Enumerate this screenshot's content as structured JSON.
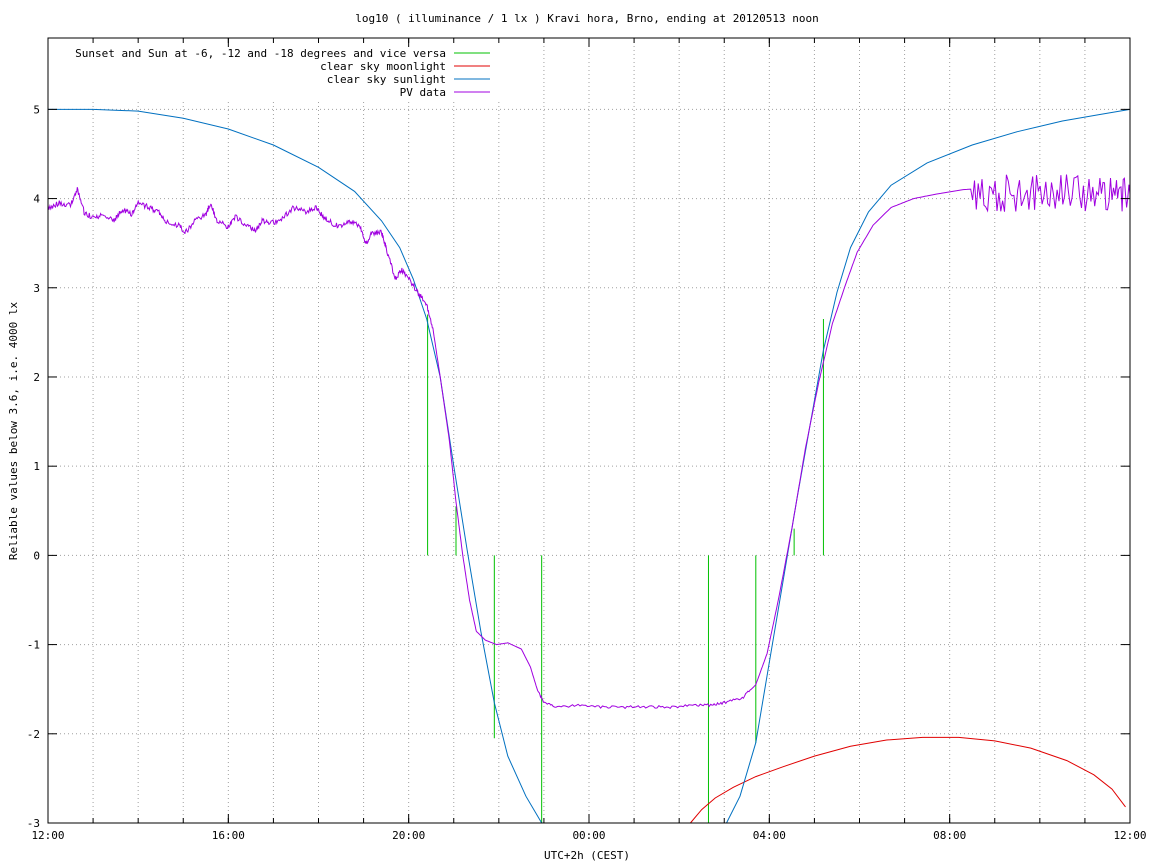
{
  "chart_data": {
    "type": "line",
    "title": "log10 ( illuminance / 1 lx ) Kravi hora, Brno, ending at 20120513 noon",
    "xlabel": "UTC+2h (CEST)",
    "ylabel": "Reliable values below 3.6, i.e. 4000 lx",
    "xlim": [
      0,
      24
    ],
    "ylim": [
      -3,
      5.8
    ],
    "x_ticks": [
      {
        "v": 0,
        "label": "12:00"
      },
      {
        "v": 4,
        "label": "16:00"
      },
      {
        "v": 8,
        "label": "20:00"
      },
      {
        "v": 12,
        "label": "00:00"
      },
      {
        "v": 16,
        "label": "04:00"
      },
      {
        "v": 20,
        "label": "08:00"
      },
      {
        "v": 24,
        "label": "12:00"
      }
    ],
    "y_ticks": [
      {
        "v": -3,
        "label": "-3"
      },
      {
        "v": -2,
        "label": "-2"
      },
      {
        "v": -1,
        "label": "-1"
      },
      {
        "v": 0,
        "label": "0"
      },
      {
        "v": 1,
        "label": "1"
      },
      {
        "v": 2,
        "label": "2"
      },
      {
        "v": 3,
        "label": "3"
      },
      {
        "v": 4,
        "label": "4"
      },
      {
        "v": 5,
        "label": "5"
      }
    ],
    "grid": true,
    "legend_position": "top-left",
    "series": [
      {
        "name": "Sunset and Sun at -6, -12 and -18 degrees and vice versa",
        "color": "#00c000",
        "kind": "vlines",
        "lines": [
          {
            "x": 8.42,
            "y0": 0,
            "y1": 2.7
          },
          {
            "x": 9.05,
            "y0": 0,
            "y1": 0.55
          },
          {
            "x": 9.9,
            "y0": -2.05,
            "y1": 0
          },
          {
            "x": 10.95,
            "y0": -3,
            "y1": 0
          },
          {
            "x": 14.65,
            "y0": -3,
            "y1": 0
          },
          {
            "x": 15.7,
            "y0": -2.1,
            "y1": 0
          },
          {
            "x": 16.55,
            "y0": 0,
            "y1": 0.3
          },
          {
            "x": 17.2,
            "y0": 0,
            "y1": 2.65
          }
        ]
      },
      {
        "name": "clear sky moonlight",
        "color": "#e00000",
        "points": [
          [
            14.25,
            -3.0
          ],
          [
            14.5,
            -2.85
          ],
          [
            14.8,
            -2.72
          ],
          [
            15.2,
            -2.6
          ],
          [
            15.7,
            -2.48
          ],
          [
            16.3,
            -2.37
          ],
          [
            17.0,
            -2.25
          ],
          [
            17.8,
            -2.14
          ],
          [
            18.6,
            -2.07
          ],
          [
            19.4,
            -2.04
          ],
          [
            20.2,
            -2.04
          ],
          [
            21.0,
            -2.08
          ],
          [
            21.8,
            -2.16
          ],
          [
            22.6,
            -2.3
          ],
          [
            23.2,
            -2.46
          ],
          [
            23.6,
            -2.62
          ],
          [
            23.9,
            -2.82
          ]
        ]
      },
      {
        "name": "clear sky sunlight",
        "color": "#0070c0",
        "points": [
          [
            0,
            5.0
          ],
          [
            1,
            5.0
          ],
          [
            2,
            4.98
          ],
          [
            3,
            4.9
          ],
          [
            4,
            4.78
          ],
          [
            5,
            4.6
          ],
          [
            6,
            4.35
          ],
          [
            6.8,
            4.08
          ],
          [
            7.4,
            3.75
          ],
          [
            7.8,
            3.45
          ],
          [
            8.1,
            3.1
          ],
          [
            8.4,
            2.65
          ],
          [
            8.7,
            2.0
          ],
          [
            9.0,
            1.0
          ],
          [
            9.3,
            0.05
          ],
          [
            9.6,
            -0.85
          ],
          [
            9.9,
            -1.65
          ],
          [
            10.2,
            -2.25
          ],
          [
            10.6,
            -2.7
          ],
          [
            10.95,
            -3.0
          ],
          [
            15.05,
            -3.0
          ],
          [
            15.35,
            -2.7
          ],
          [
            15.7,
            -2.1
          ],
          [
            16.0,
            -1.2
          ],
          [
            16.3,
            -0.3
          ],
          [
            16.6,
            0.6
          ],
          [
            16.9,
            1.45
          ],
          [
            17.2,
            2.3
          ],
          [
            17.5,
            2.95
          ],
          [
            17.8,
            3.45
          ],
          [
            18.2,
            3.85
          ],
          [
            18.7,
            4.15
          ],
          [
            19.5,
            4.4
          ],
          [
            20.5,
            4.6
          ],
          [
            21.5,
            4.75
          ],
          [
            22.5,
            4.87
          ],
          [
            23.3,
            4.94
          ],
          [
            24,
            5.0
          ]
        ]
      },
      {
        "name": "PV data",
        "color": "#a000e0",
        "points": [
          [
            0,
            3.9
          ],
          [
            0.25,
            3.95
          ],
          [
            0.5,
            3.92
          ],
          [
            0.65,
            4.1
          ],
          [
            0.8,
            3.85
          ],
          [
            1.0,
            3.78
          ],
          [
            1.2,
            3.82
          ],
          [
            1.45,
            3.75
          ],
          [
            1.65,
            3.88
          ],
          [
            1.85,
            3.82
          ],
          [
            2.0,
            3.95
          ],
          [
            2.25,
            3.9
          ],
          [
            2.45,
            3.85
          ],
          [
            2.6,
            3.75
          ],
          [
            2.9,
            3.7
          ],
          [
            3.05,
            3.62
          ],
          [
            3.25,
            3.75
          ],
          [
            3.5,
            3.82
          ],
          [
            3.6,
            3.95
          ],
          [
            3.75,
            3.75
          ],
          [
            4.0,
            3.68
          ],
          [
            4.15,
            3.8
          ],
          [
            4.4,
            3.7
          ],
          [
            4.6,
            3.65
          ],
          [
            4.75,
            3.75
          ],
          [
            4.95,
            3.72
          ],
          [
            5.2,
            3.78
          ],
          [
            5.45,
            3.9
          ],
          [
            5.7,
            3.85
          ],
          [
            5.95,
            3.9
          ],
          [
            6.1,
            3.8
          ],
          [
            6.3,
            3.72
          ],
          [
            6.5,
            3.68
          ],
          [
            6.7,
            3.75
          ],
          [
            6.9,
            3.7
          ],
          [
            7.05,
            3.5
          ],
          [
            7.2,
            3.62
          ],
          [
            7.4,
            3.62
          ],
          [
            7.5,
            3.45
          ],
          [
            7.7,
            3.1
          ],
          [
            7.85,
            3.2
          ],
          [
            8.0,
            3.1
          ],
          [
            8.2,
            2.95
          ],
          [
            8.4,
            2.8
          ],
          [
            8.55,
            2.5
          ],
          [
            8.7,
            2.0
          ],
          [
            8.9,
            1.3
          ],
          [
            9.05,
            0.6
          ],
          [
            9.2,
            0.0
          ],
          [
            9.35,
            -0.5
          ],
          [
            9.5,
            -0.85
          ],
          [
            9.7,
            -0.95
          ],
          [
            9.95,
            -1.0
          ],
          [
            10.2,
            -0.98
          ],
          [
            10.5,
            -1.05
          ],
          [
            10.7,
            -1.25
          ],
          [
            10.85,
            -1.5
          ],
          [
            11.0,
            -1.65
          ],
          [
            11.3,
            -1.7
          ],
          [
            11.8,
            -1.68
          ],
          [
            12.3,
            -1.7
          ],
          [
            12.8,
            -1.7
          ],
          [
            13.3,
            -1.7
          ],
          [
            13.8,
            -1.7
          ],
          [
            14.3,
            -1.68
          ],
          [
            14.7,
            -1.68
          ],
          [
            15.0,
            -1.65
          ],
          [
            15.4,
            -1.6
          ],
          [
            15.7,
            -1.45
          ],
          [
            15.95,
            -1.1
          ],
          [
            16.2,
            -0.5
          ],
          [
            16.5,
            0.3
          ],
          [
            16.8,
            1.2
          ],
          [
            17.1,
            1.95
          ],
          [
            17.4,
            2.6
          ],
          [
            17.7,
            3.05
          ],
          [
            17.95,
            3.4
          ],
          [
            18.3,
            3.7
          ],
          [
            18.7,
            3.9
          ],
          [
            19.2,
            4.0
          ],
          [
            19.7,
            4.05
          ],
          [
            20.3,
            4.1
          ],
          [
            20.8,
            4.12
          ],
          [
            21.3,
            4.12
          ],
          [
            21.8,
            4.15
          ],
          [
            22.3,
            4.1
          ],
          [
            22.8,
            4.12
          ],
          [
            23.3,
            4.1
          ],
          [
            23.7,
            4.1
          ],
          [
            24.0,
            4.05
          ]
        ],
        "noisy_from_x": 20.5,
        "noise_band": [
          3.85,
          4.28
        ]
      }
    ]
  }
}
